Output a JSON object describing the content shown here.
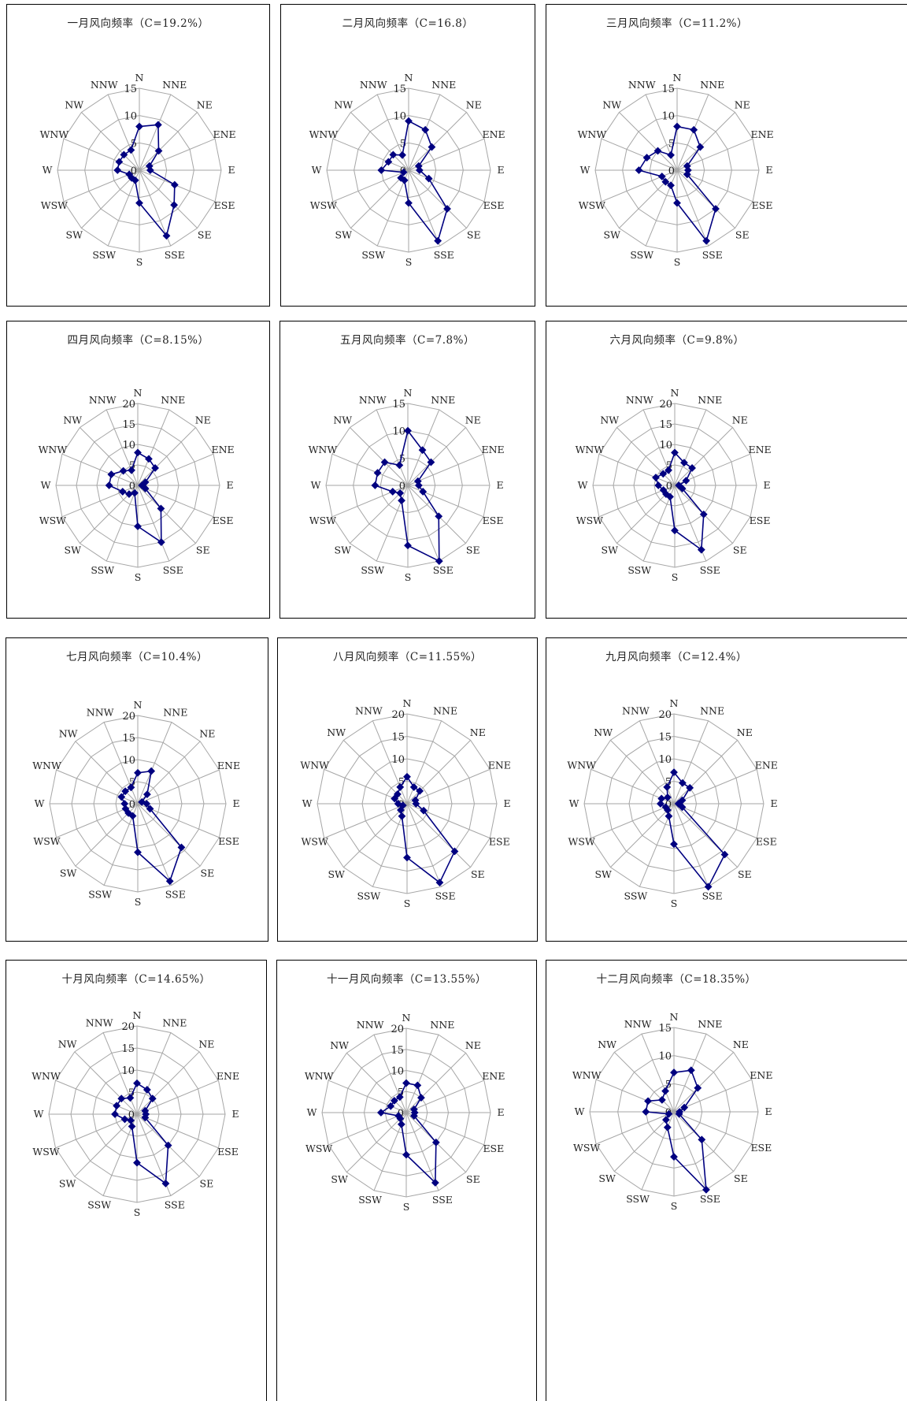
{
  "directions": [
    "N",
    "NNE",
    "NE",
    "ENE",
    "E",
    "ESE",
    "SE",
    "SSE",
    "S",
    "SSW",
    "SW",
    "WSW",
    "W",
    "WNW",
    "NW",
    "NNW"
  ],
  "colors": {
    "series": "#000080",
    "grid": "#a6a6a6",
    "border": "#000000"
  },
  "chart_data": [
    {
      "type": "radar",
      "title": "一月风向频率（C=19.2%）",
      "rmax": 15,
      "ticks": [
        "0",
        "5",
        "10",
        "15"
      ],
      "values": [
        8,
        9,
        5,
        2,
        2,
        7,
        9,
        13,
        6,
        2,
        2,
        2,
        4,
        4,
        4,
        4
      ]
    },
    {
      "type": "radar",
      "title": "二月风向频率（C=16.8）",
      "rmax": 15,
      "ticks": [
        "0",
        "5",
        "10",
        "15"
      ],
      "values": [
        9,
        8,
        6,
        2,
        2,
        4,
        10,
        14,
        6,
        2,
        2,
        1,
        5,
        4,
        4,
        3
      ]
    },
    {
      "type": "radar",
      "title": "三月风向频率（C=11.2%）",
      "rmax": 15,
      "ticks": [
        "0",
        "5",
        "10",
        "15"
      ],
      "values": [
        8,
        8,
        6,
        2,
        2,
        2,
        10,
        14,
        6,
        3,
        3,
        3,
        7,
        6,
        5,
        3
      ]
    },
    {
      "type": "radar",
      "title": "四月风向频率（C=8.15%）",
      "rmax": 20,
      "ticks": [
        "0",
        "5",
        "10",
        "15",
        "20"
      ],
      "values": [
        8,
        7,
        6,
        2,
        1,
        2,
        8,
        15,
        10,
        2,
        3,
        4,
        7,
        7,
        5,
        4
      ]
    },
    {
      "type": "radar",
      "title": "五月风向频率（C=7.8%）",
      "rmax": 15,
      "ticks": [
        "0",
        "5",
        "10",
        "15"
      ],
      "values": [
        10,
        7,
        6,
        2,
        2,
        3,
        8,
        15,
        11,
        3,
        2,
        3,
        6,
        6,
        6,
        4
      ]
    },
    {
      "type": "radar",
      "title": "六月风向频率（C=9.8%）",
      "rmax": 20,
      "ticks": [
        "0",
        "5",
        "10",
        "15",
        "20"
      ],
      "values": [
        8,
        6,
        6,
        3,
        1,
        2,
        10,
        17,
        11,
        3,
        3,
        3,
        4,
        5,
        4,
        4
      ]
    },
    {
      "type": "radar",
      "title": "七月风向频率（C=10.4%）",
      "rmax": 20,
      "ticks": [
        "0",
        "5",
        "10",
        "15",
        "20"
      ],
      "values": [
        7,
        8,
        3,
        1,
        2,
        3,
        14,
        19,
        11,
        3,
        3,
        3,
        3,
        4,
        4,
        4
      ]
    },
    {
      "type": "radar",
      "title": "八月风向频率（C=11.55%）",
      "rmax": 20,
      "ticks": [
        "0",
        "5",
        "10",
        "15",
        "20"
      ],
      "values": [
        6,
        4,
        4,
        2,
        2,
        4,
        15,
        19,
        12,
        3,
        2,
        1,
        2,
        3,
        3,
        4
      ]
    },
    {
      "type": "radar",
      "title": "九月风向频率（C=12.4%）",
      "rmax": 20,
      "ticks": [
        "0",
        "5",
        "10",
        "15",
        "20"
      ],
      "values": [
        7,
        5,
        5,
        2,
        1,
        2,
        16,
        20,
        9,
        3,
        2,
        2,
        3,
        3,
        2,
        4
      ]
    },
    {
      "type": "radar",
      "title": "十月风向频率（C=14.65%）",
      "rmax": 20,
      "ticks": [
        "0",
        "5",
        "10",
        "15",
        "20"
      ],
      "values": [
        7,
        6,
        5,
        2,
        2,
        2,
        10,
        17,
        11,
        3,
        2,
        3,
        5,
        5,
        5,
        4
      ]
    },
    {
      "type": "radar",
      "title": "十一月风向频率（C=13.55%）",
      "rmax": 20,
      "ticks": [
        "0",
        "5",
        "10",
        "15",
        "20"
      ],
      "values": [
        7,
        7,
        5,
        2,
        2,
        2,
        10,
        18,
        10,
        3,
        2,
        2,
        6,
        4,
        4,
        4
      ]
    },
    {
      "type": "radar",
      "title": "十二月风向频率（C=18.35%）",
      "rmax": 15,
      "ticks": [
        "0",
        "5",
        "10",
        "15"
      ],
      "values": [
        7,
        8,
        6,
        2,
        1,
        1,
        7,
        15,
        8,
        3,
        2,
        1,
        5,
        5,
        3,
        4
      ]
    }
  ]
}
